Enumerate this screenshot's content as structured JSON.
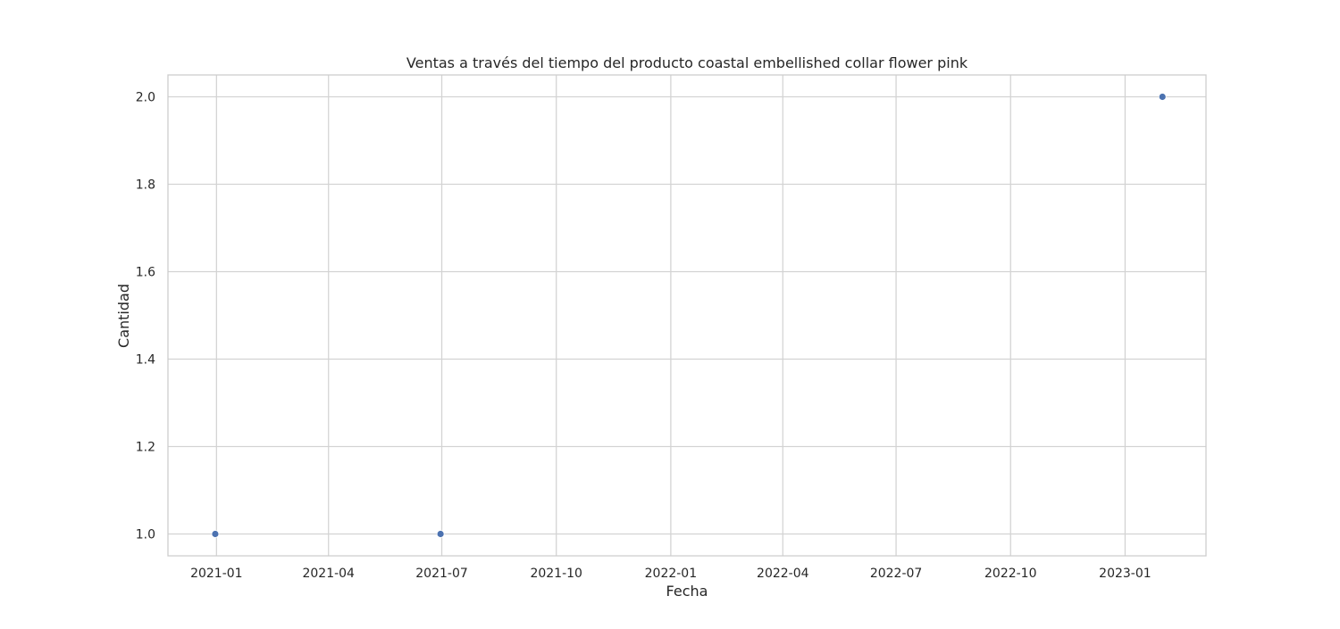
{
  "chart_data": {
    "type": "scatter",
    "title": "Ventas a través del tiempo del producto coastal embellished collar flower pink",
    "xlabel": "Fecha",
    "ylabel": "Cantidad",
    "x_axis_type": "date",
    "xlim": [
      "2020-11-23",
      "2023-03-07"
    ],
    "ylim": [
      0.95,
      2.05
    ],
    "x_ticks": [
      "2021-01",
      "2021-04",
      "2021-07",
      "2021-10",
      "2022-01",
      "2022-04",
      "2022-07",
      "2022-10",
      "2023-01"
    ],
    "y_ticks": [
      1.0,
      1.2,
      1.4,
      1.6,
      1.8,
      2.0
    ],
    "y_tick_labels": [
      "1.0",
      "1.2",
      "1.4",
      "1.6",
      "1.8",
      "2.0"
    ],
    "grid": true,
    "marker_color": "#4c72b0",
    "points": [
      {
        "x": "2020-12-31",
        "y": 1
      },
      {
        "x": "2021-06-30",
        "y": 1
      },
      {
        "x": "2023-01-31",
        "y": 2
      }
    ]
  }
}
